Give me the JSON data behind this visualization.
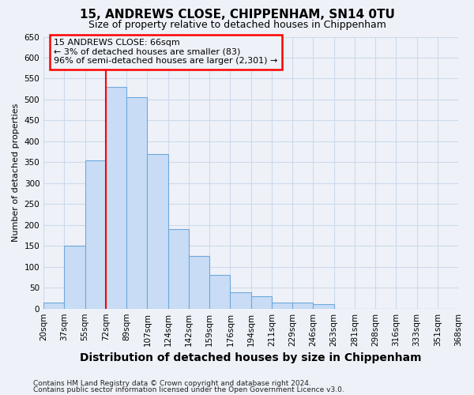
{
  "title": "15, ANDREWS CLOSE, CHIPPENHAM, SN14 0TU",
  "subtitle": "Size of property relative to detached houses in Chippenham",
  "xlabel": "Distribution of detached houses by size in Chippenham",
  "ylabel": "Number of detached properties",
  "bin_labels": [
    "20sqm",
    "37sqm",
    "55sqm",
    "72sqm",
    "89sqm",
    "107sqm",
    "124sqm",
    "142sqm",
    "159sqm",
    "176sqm",
    "194sqm",
    "211sqm",
    "229sqm",
    "246sqm",
    "263sqm",
    "281sqm",
    "298sqm",
    "316sqm",
    "333sqm",
    "351sqm",
    "368sqm"
  ],
  "bar_heights": [
    15,
    150,
    355,
    530,
    505,
    370,
    190,
    125,
    80,
    40,
    30,
    15,
    15,
    10,
    0,
    0,
    0,
    0,
    0,
    0
  ],
  "bar_color": "#c8dcf5",
  "bar_edge_color": "#6fa8dc",
  "grid_color": "#cdd9ea",
  "property_line_x": 3.0,
  "annotation_text": "15 ANDREWS CLOSE: 66sqm\n← 3% of detached houses are smaller (83)\n96% of semi-detached houses are larger (2,301) →",
  "annotation_box_color": "red",
  "ylim": [
    0,
    650
  ],
  "yticks": [
    0,
    50,
    100,
    150,
    200,
    250,
    300,
    350,
    400,
    450,
    500,
    550,
    600,
    650
  ],
  "footer_line1": "Contains HM Land Registry data © Crown copyright and database right 2024.",
  "footer_line2": "Contains public sector information licensed under the Open Government Licence v3.0.",
  "background_color": "#eef2f8",
  "fig_width": 6.0,
  "fig_height": 5.0,
  "title_fontsize": 11,
  "subtitle_fontsize": 9,
  "xlabel_fontsize": 10,
  "ylabel_fontsize": 8,
  "tick_fontsize": 7.5,
  "annotation_fontsize": 8,
  "footer_fontsize": 6.5
}
